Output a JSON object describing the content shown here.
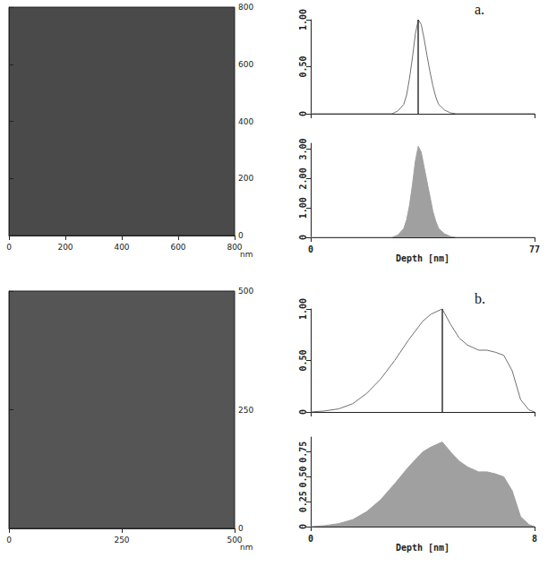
{
  "chart_data": [
    {
      "type": "image",
      "xlim": [
        0,
        800
      ],
      "xticks": [
        0,
        200,
        400,
        600,
        800
      ],
      "ylim": [
        0,
        800
      ],
      "yticks": [
        0,
        200,
        400,
        600,
        800
      ],
      "xlabel": "nm",
      "color": "#4a4a4a"
    },
    {
      "type": "line",
      "panel_label": "a.",
      "color": "#707070",
      "x": [
        0,
        28,
        30,
        32,
        33,
        34,
        35,
        36,
        37,
        38,
        39,
        40,
        41,
        42,
        43,
        44,
        46,
        48,
        50,
        77
      ],
      "values": [
        0,
        0,
        0.03,
        0.1,
        0.2,
        0.38,
        0.6,
        0.85,
        1.0,
        0.95,
        0.8,
        0.62,
        0.45,
        0.3,
        0.18,
        0.1,
        0.04,
        0.01,
        0,
        0
      ],
      "vline": 37,
      "xlim": [
        0,
        77
      ],
      "xticks": [
        0,
        77
      ],
      "ylim": [
        0,
        1
      ],
      "yticks": [
        0,
        {
          "value": 0.5,
          "label": "0.50"
        },
        {
          "value": 1,
          "label": "1.00"
        }
      ],
      "tick_labels": "y"
    },
    {
      "type": "area",
      "color": "#a0a0a0",
      "x": [
        0,
        28,
        30,
        32,
        33,
        34,
        35,
        36,
        37,
        38,
        39,
        40,
        41,
        42,
        43,
        44,
        46,
        48,
        50,
        77
      ],
      "values": [
        0,
        0,
        0.08,
        0.3,
        0.6,
        1.1,
        1.8,
        2.6,
        3.1,
        2.9,
        2.4,
        1.9,
        1.4,
        0.9,
        0.55,
        0.3,
        0.12,
        0.03,
        0,
        0
      ],
      "xlim": [
        0,
        77
      ],
      "xticks": [
        0,
        77
      ],
      "ylim": [
        0,
        3.2
      ],
      "yticks": [
        0,
        {
          "value": 1,
          "label": "1.00"
        },
        {
          "value": 2,
          "label": "2.00"
        },
        {
          "value": 3,
          "label": "3.00"
        }
      ],
      "xlabel": "Depth [nm]"
    },
    {
      "type": "image",
      "xlim": [
        0,
        500
      ],
      "xticks": [
        0,
        250,
        500
      ],
      "ylim": [
        0,
        500
      ],
      "yticks": [
        0,
        250,
        500
      ],
      "xlabel": "nm",
      "color": "#555555"
    },
    {
      "type": "line",
      "panel_label": "b.",
      "color": "#707070",
      "x": [
        0,
        0.5,
        1,
        1.5,
        2,
        2.5,
        3,
        3.5,
        4,
        4.3,
        4.7,
        5,
        5.3,
        5.6,
        6,
        6.3,
        6.6,
        6.9,
        7.2,
        7.5,
        7.8,
        8
      ],
      "values": [
        0,
        0.01,
        0.03,
        0.08,
        0.18,
        0.32,
        0.5,
        0.7,
        0.88,
        0.95,
        1.0,
        0.85,
        0.72,
        0.65,
        0.6,
        0.6,
        0.58,
        0.55,
        0.4,
        0.12,
        0.02,
        0
      ],
      "vline": 4.7,
      "xlim": [
        0,
        8
      ],
      "xticks": [
        0,
        8
      ],
      "ylim": [
        0,
        1
      ],
      "yticks": [
        0,
        {
          "value": 0.5,
          "label": "0.50"
        },
        {
          "value": 1,
          "label": "1.00"
        }
      ],
      "tick_labels": "y"
    },
    {
      "type": "area",
      "color": "#a0a0a0",
      "x": [
        0,
        0.5,
        1,
        1.5,
        2,
        2.5,
        3,
        3.5,
        4,
        4.3,
        4.7,
        5,
        5.3,
        5.6,
        6,
        6.3,
        6.6,
        6.9,
        7.2,
        7.5,
        7.8,
        8
      ],
      "values": [
        0,
        0.01,
        0.03,
        0.07,
        0.15,
        0.27,
        0.43,
        0.6,
        0.75,
        0.8,
        0.85,
        0.75,
        0.66,
        0.6,
        0.55,
        0.55,
        0.53,
        0.5,
        0.36,
        0.1,
        0.02,
        0
      ],
      "xlim": [
        0,
        8
      ],
      "xticks": [
        0,
        8
      ],
      "ylim": [
        0,
        0.9
      ],
      "yticks": [
        0,
        0.25,
        {
          "value": 0.5,
          "label": "0.50"
        },
        0.75
      ],
      "xlabel": "Depth [nm]"
    }
  ]
}
